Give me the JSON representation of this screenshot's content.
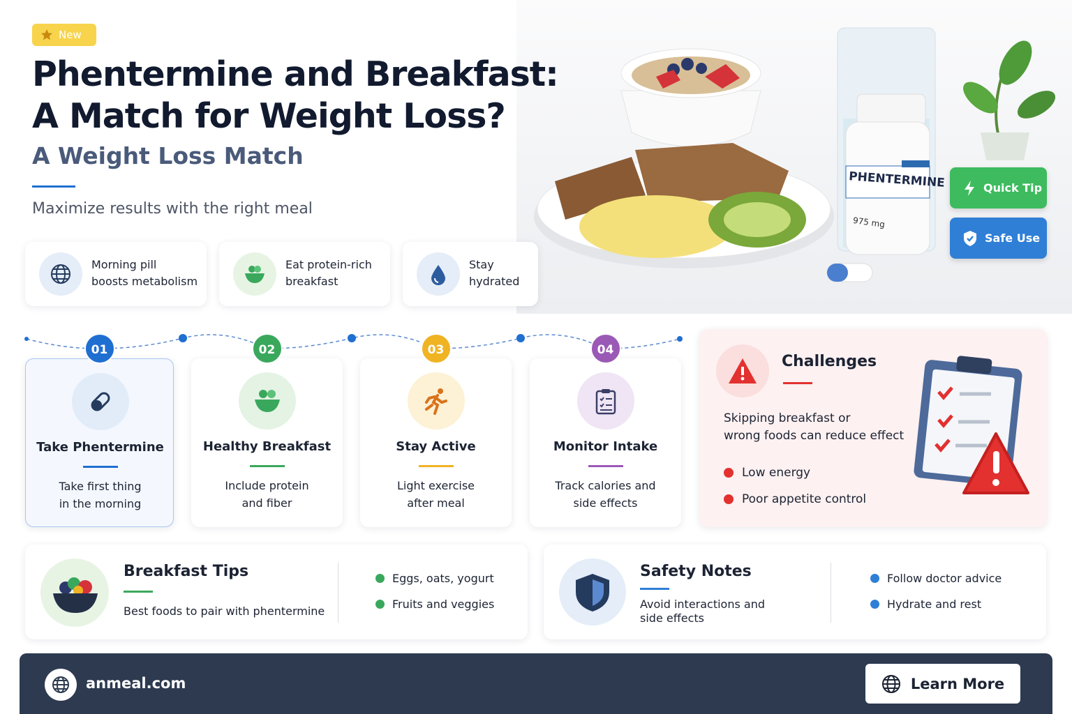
{
  "badge": "New",
  "header": {
    "title": [
      "Phentermine and Breakfast:",
      "A Match for Weight Loss?"
    ],
    "subtitle": "A Weight Loss Match",
    "tagline": "Maximize results with the right meal"
  },
  "features": [
    {
      "lines": [
        "Morning pill",
        "boosts metabolism"
      ]
    },
    {
      "lines": [
        "Eat protein-rich",
        "breakfast"
      ]
    },
    {
      "lines": [
        "Stay",
        "hydrated"
      ]
    }
  ],
  "image": {
    "bottle_label": "PHENTERMINE",
    "bottle_dose": "975 mg"
  },
  "buttons": [
    "Quick Tip",
    "Safe Use"
  ],
  "steps": [
    {
      "number": "01",
      "title": "Take Phentermine",
      "lines": [
        "Take first thing",
        "in the morning"
      ]
    },
    {
      "number": "02",
      "title": "Healthy Breakfast",
      "lines": [
        "Include protein",
        "and fiber"
      ]
    },
    {
      "number": "03",
      "title": "Stay Active",
      "lines": [
        "Light exercise",
        "after meal"
      ]
    },
    {
      "number": "04",
      "title": "Monitor Intake",
      "lines": [
        "Track calories and",
        "side effects"
      ]
    }
  ],
  "challenges": {
    "title": "Challenges",
    "lines": [
      "Skipping breakfast or",
      "wrong foods can reduce effect"
    ],
    "bullets": [
      "Low energy",
      "Poor appetite control"
    ]
  },
  "tips": {
    "title": "Breakfast Tips",
    "subtitle": "Best foods to pair with phentermine",
    "bullets": [
      "Eggs, oats, yogurt",
      "Fruits and veggies"
    ]
  },
  "safety": {
    "title": "Safety Notes",
    "lines": [
      "Avoid interactions and",
      "side effects"
    ],
    "bullets": [
      "Follow doctor advice",
      "Hydrate and rest"
    ]
  },
  "footer": {
    "site": "anmeal.com",
    "button": "Learn More"
  }
}
